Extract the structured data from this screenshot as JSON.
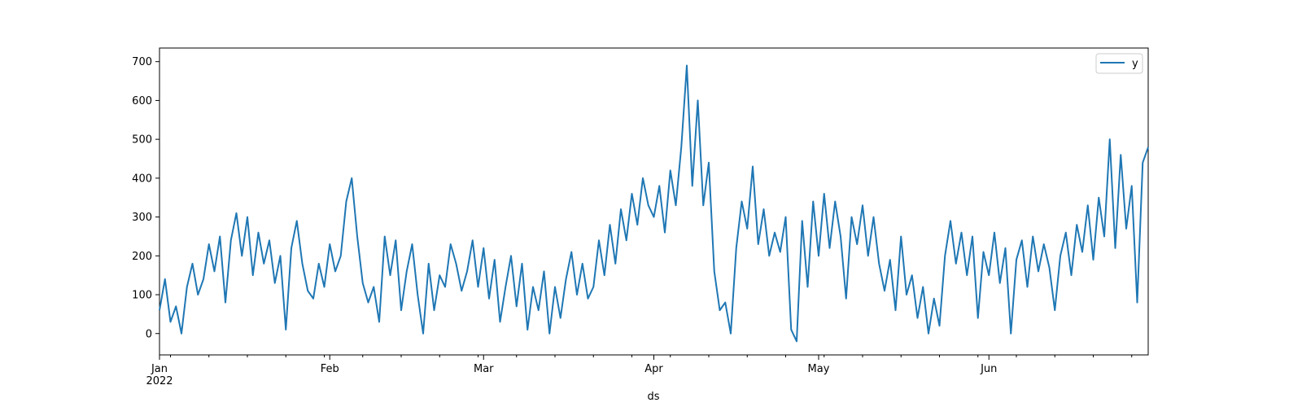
{
  "chart_data": {
    "type": "line",
    "title": "",
    "xlabel": "ds",
    "ylabel": "",
    "x_start": "2022-01-01",
    "x_end": "2022-06-30",
    "ylim": [
      -55,
      735
    ],
    "y_ticks": [
      0,
      100,
      200,
      300,
      400,
      500,
      600,
      700
    ],
    "x_ticks": [
      {
        "date": "2022-01-01",
        "label": "Jan",
        "sub": "2022"
      },
      {
        "date": "2022-02-01",
        "label": "Feb",
        "sub": ""
      },
      {
        "date": "2022-03-01",
        "label": "Mar",
        "sub": ""
      },
      {
        "date": "2022-04-01",
        "label": "Apr",
        "sub": ""
      },
      {
        "date": "2022-05-01",
        "label": "May",
        "sub": ""
      },
      {
        "date": "2022-06-01",
        "label": "Jun",
        "sub": ""
      }
    ],
    "grid": false,
    "legend_position": "top-right",
    "series": [
      {
        "name": "y",
        "color": "#1f77b4",
        "points": [
          [
            "2022-01-01",
            60
          ],
          [
            "2022-01-02",
            140
          ],
          [
            "2022-01-03",
            30
          ],
          [
            "2022-01-04",
            70
          ],
          [
            "2022-01-05",
            0
          ],
          [
            "2022-01-06",
            120
          ],
          [
            "2022-01-07",
            180
          ],
          [
            "2022-01-08",
            100
          ],
          [
            "2022-01-09",
            140
          ],
          [
            "2022-01-10",
            230
          ],
          [
            "2022-01-11",
            160
          ],
          [
            "2022-01-12",
            250
          ],
          [
            "2022-01-13",
            80
          ],
          [
            "2022-01-14",
            240
          ],
          [
            "2022-01-15",
            310
          ],
          [
            "2022-01-16",
            200
          ],
          [
            "2022-01-17",
            300
          ],
          [
            "2022-01-18",
            150
          ],
          [
            "2022-01-19",
            260
          ],
          [
            "2022-01-20",
            180
          ],
          [
            "2022-01-21",
            240
          ],
          [
            "2022-01-22",
            130
          ],
          [
            "2022-01-23",
            200
          ],
          [
            "2022-01-24",
            10
          ],
          [
            "2022-01-25",
            220
          ],
          [
            "2022-01-26",
            290
          ],
          [
            "2022-01-27",
            180
          ],
          [
            "2022-01-28",
            110
          ],
          [
            "2022-01-29",
            90
          ],
          [
            "2022-01-30",
            180
          ],
          [
            "2022-01-31",
            120
          ],
          [
            "2022-02-01",
            230
          ],
          [
            "2022-02-02",
            160
          ],
          [
            "2022-02-03",
            200
          ],
          [
            "2022-02-04",
            340
          ],
          [
            "2022-02-05",
            400
          ],
          [
            "2022-02-06",
            250
          ],
          [
            "2022-02-07",
            130
          ],
          [
            "2022-02-08",
            80
          ],
          [
            "2022-02-09",
            120
          ],
          [
            "2022-02-10",
            30
          ],
          [
            "2022-02-11",
            250
          ],
          [
            "2022-02-12",
            150
          ],
          [
            "2022-02-13",
            240
          ],
          [
            "2022-02-14",
            60
          ],
          [
            "2022-02-15",
            160
          ],
          [
            "2022-02-16",
            230
          ],
          [
            "2022-02-17",
            100
          ],
          [
            "2022-02-18",
            0
          ],
          [
            "2022-02-19",
            180
          ],
          [
            "2022-02-20",
            60
          ],
          [
            "2022-02-21",
            150
          ],
          [
            "2022-02-22",
            120
          ],
          [
            "2022-02-23",
            230
          ],
          [
            "2022-02-24",
            180
          ],
          [
            "2022-02-25",
            110
          ],
          [
            "2022-02-26",
            160
          ],
          [
            "2022-02-27",
            240
          ],
          [
            "2022-02-28",
            120
          ],
          [
            "2022-03-01",
            220
          ],
          [
            "2022-03-02",
            90
          ],
          [
            "2022-03-03",
            190
          ],
          [
            "2022-03-04",
            30
          ],
          [
            "2022-03-05",
            120
          ],
          [
            "2022-03-06",
            200
          ],
          [
            "2022-03-07",
            70
          ],
          [
            "2022-03-08",
            180
          ],
          [
            "2022-03-09",
            10
          ],
          [
            "2022-03-10",
            120
          ],
          [
            "2022-03-11",
            60
          ],
          [
            "2022-03-12",
            160
          ],
          [
            "2022-03-13",
            0
          ],
          [
            "2022-03-14",
            120
          ],
          [
            "2022-03-15",
            40
          ],
          [
            "2022-03-16",
            140
          ],
          [
            "2022-03-17",
            210
          ],
          [
            "2022-03-18",
            100
          ],
          [
            "2022-03-19",
            180
          ],
          [
            "2022-03-20",
            90
          ],
          [
            "2022-03-21",
            120
          ],
          [
            "2022-03-22",
            240
          ],
          [
            "2022-03-23",
            150
          ],
          [
            "2022-03-24",
            280
          ],
          [
            "2022-03-25",
            180
          ],
          [
            "2022-03-26",
            320
          ],
          [
            "2022-03-27",
            240
          ],
          [
            "2022-03-28",
            360
          ],
          [
            "2022-03-29",
            280
          ],
          [
            "2022-03-30",
            400
          ],
          [
            "2022-03-31",
            330
          ],
          [
            "2022-04-01",
            300
          ],
          [
            "2022-04-02",
            380
          ],
          [
            "2022-04-03",
            260
          ],
          [
            "2022-04-04",
            420
          ],
          [
            "2022-04-05",
            330
          ],
          [
            "2022-04-06",
            480
          ],
          [
            "2022-04-07",
            690
          ],
          [
            "2022-04-08",
            380
          ],
          [
            "2022-04-09",
            600
          ],
          [
            "2022-04-10",
            330
          ],
          [
            "2022-04-11",
            440
          ],
          [
            "2022-04-12",
            160
          ],
          [
            "2022-04-13",
            60
          ],
          [
            "2022-04-14",
            80
          ],
          [
            "2022-04-15",
            0
          ],
          [
            "2022-04-16",
            220
          ],
          [
            "2022-04-17",
            340
          ],
          [
            "2022-04-18",
            270
          ],
          [
            "2022-04-19",
            430
          ],
          [
            "2022-04-20",
            230
          ],
          [
            "2022-04-21",
            320
          ],
          [
            "2022-04-22",
            200
          ],
          [
            "2022-04-23",
            260
          ],
          [
            "2022-04-24",
            210
          ],
          [
            "2022-04-25",
            300
          ],
          [
            "2022-04-26",
            10
          ],
          [
            "2022-04-27",
            -20
          ],
          [
            "2022-04-28",
            290
          ],
          [
            "2022-04-29",
            120
          ],
          [
            "2022-04-30",
            340
          ],
          [
            "2022-05-01",
            200
          ],
          [
            "2022-05-02",
            360
          ],
          [
            "2022-05-03",
            220
          ],
          [
            "2022-05-04",
            340
          ],
          [
            "2022-05-05",
            250
          ],
          [
            "2022-05-06",
            90
          ],
          [
            "2022-05-07",
            300
          ],
          [
            "2022-05-08",
            230
          ],
          [
            "2022-05-09",
            330
          ],
          [
            "2022-05-10",
            200
          ],
          [
            "2022-05-11",
            300
          ],
          [
            "2022-05-12",
            180
          ],
          [
            "2022-05-13",
            110
          ],
          [
            "2022-05-14",
            190
          ],
          [
            "2022-05-15",
            60
          ],
          [
            "2022-05-16",
            250
          ],
          [
            "2022-05-17",
            100
          ],
          [
            "2022-05-18",
            150
          ],
          [
            "2022-05-19",
            40
          ],
          [
            "2022-05-20",
            120
          ],
          [
            "2022-05-21",
            0
          ],
          [
            "2022-05-22",
            90
          ],
          [
            "2022-05-23",
            20
          ],
          [
            "2022-05-24",
            200
          ],
          [
            "2022-05-25",
            290
          ],
          [
            "2022-05-26",
            180
          ],
          [
            "2022-05-27",
            260
          ],
          [
            "2022-05-28",
            150
          ],
          [
            "2022-05-29",
            250
          ],
          [
            "2022-05-30",
            40
          ],
          [
            "2022-05-31",
            210
          ],
          [
            "2022-06-01",
            150
          ],
          [
            "2022-06-02",
            260
          ],
          [
            "2022-06-03",
            130
          ],
          [
            "2022-06-04",
            220
          ],
          [
            "2022-06-05",
            0
          ],
          [
            "2022-06-06",
            190
          ],
          [
            "2022-06-07",
            240
          ],
          [
            "2022-06-08",
            120
          ],
          [
            "2022-06-09",
            250
          ],
          [
            "2022-06-10",
            160
          ],
          [
            "2022-06-11",
            230
          ],
          [
            "2022-06-12",
            170
          ],
          [
            "2022-06-13",
            60
          ],
          [
            "2022-06-14",
            200
          ],
          [
            "2022-06-15",
            260
          ],
          [
            "2022-06-16",
            150
          ],
          [
            "2022-06-17",
            280
          ],
          [
            "2022-06-18",
            210
          ],
          [
            "2022-06-19",
            330
          ],
          [
            "2022-06-20",
            190
          ],
          [
            "2022-06-21",
            350
          ],
          [
            "2022-06-22",
            250
          ],
          [
            "2022-06-23",
            500
          ],
          [
            "2022-06-24",
            220
          ],
          [
            "2022-06-25",
            460
          ],
          [
            "2022-06-26",
            270
          ],
          [
            "2022-06-27",
            380
          ],
          [
            "2022-06-28",
            80
          ],
          [
            "2022-06-29",
            440
          ],
          [
            "2022-06-30",
            480
          ]
        ]
      }
    ]
  }
}
